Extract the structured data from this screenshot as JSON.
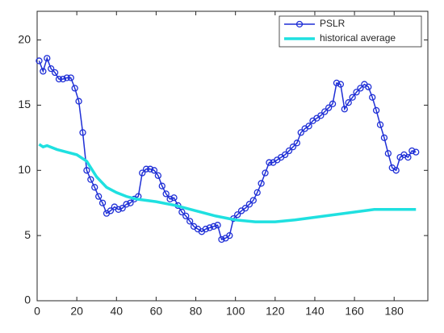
{
  "chart_data": {
    "type": "line",
    "xlim": [
      0,
      197
    ],
    "ylim": [
      0,
      22.2
    ],
    "xticks": [
      0,
      20,
      40,
      60,
      80,
      100,
      120,
      140,
      160,
      180
    ],
    "yticks": [
      0,
      5,
      10,
      15,
      20
    ],
    "legend": "top-right",
    "series": [
      {
        "name": "PSLR",
        "color": "#1f2fd6",
        "marker": "circle",
        "x": [
          1,
          3,
          5,
          7,
          9,
          11,
          13,
          15,
          17,
          19,
          21,
          23,
          25,
          27,
          29,
          31,
          33,
          35,
          37,
          39,
          41,
          43,
          45,
          47,
          49,
          51,
          53,
          55,
          57,
          59,
          61,
          63,
          65,
          67,
          69,
          71,
          73,
          75,
          77,
          79,
          81,
          83,
          85,
          87,
          89,
          91,
          93,
          95,
          97,
          99,
          101,
          103,
          105,
          107,
          109,
          111,
          113,
          115,
          117,
          119,
          121,
          123,
          125,
          127,
          129,
          131,
          133,
          135,
          137,
          139,
          141,
          143,
          145,
          147,
          149,
          151,
          153,
          155,
          157,
          159,
          161,
          163,
          165,
          167,
          169,
          171,
          173,
          175,
          177,
          179,
          181,
          183,
          185,
          187,
          189,
          191
        ],
        "values": [
          18.4,
          17.6,
          18.6,
          17.8,
          17.5,
          17.0,
          17.0,
          17.1,
          17.1,
          16.3,
          15.3,
          12.9,
          10.0,
          9.3,
          8.7,
          8.0,
          7.5,
          6.7,
          6.9,
          7.2,
          7.0,
          7.1,
          7.4,
          7.5,
          7.8,
          8.0,
          9.8,
          10.1,
          10.1,
          10.0,
          9.6,
          8.8,
          8.2,
          7.8,
          7.9,
          7.3,
          6.8,
          6.5,
          6.1,
          5.7,
          5.5,
          5.3,
          5.5,
          5.6,
          5.7,
          5.8,
          4.7,
          4.8,
          5.0,
          6.3,
          6.6,
          6.9,
          7.1,
          7.4,
          7.7,
          8.3,
          9.0,
          9.8,
          10.6,
          10.6,
          10.8,
          11.0,
          11.2,
          11.5,
          11.8,
          12.1,
          12.9,
          13.2,
          13.4,
          13.8,
          14.0,
          14.2,
          14.5,
          14.8,
          15.1,
          16.7,
          16.6,
          14.7,
          15.2,
          15.6,
          16.0,
          16.3,
          16.6,
          16.4,
          15.6,
          14.6,
          13.5,
          12.5,
          11.3,
          10.2,
          10.0,
          11.0,
          11.2,
          11.0,
          11.5,
          11.4
        ]
      },
      {
        "name": "historical average",
        "color": "#1fe0e0",
        "marker": "none",
        "x": [
          1,
          3,
          5,
          10,
          15,
          20,
          25,
          30,
          35,
          40,
          45,
          50,
          60,
          70,
          80,
          90,
          100,
          110,
          120,
          130,
          140,
          150,
          160,
          170,
          180,
          191
        ],
        "values": [
          12.0,
          11.8,
          11.9,
          11.6,
          11.4,
          11.2,
          10.7,
          9.5,
          8.7,
          8.3,
          8.0,
          7.8,
          7.6,
          7.3,
          6.9,
          6.5,
          6.2,
          6.05,
          6.05,
          6.2,
          6.4,
          6.6,
          6.8,
          7.0,
          7.0,
          7.0
        ]
      }
    ]
  }
}
